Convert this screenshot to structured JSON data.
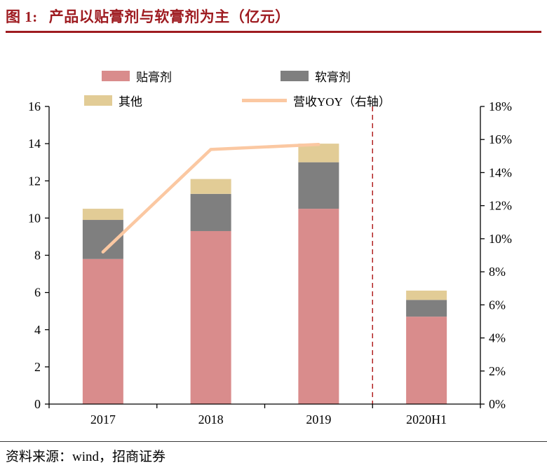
{
  "header": {
    "figure_label": "图 1:",
    "title": "产品以贴膏剂与软膏剂为主（亿元）"
  },
  "footer": {
    "source": "资料来源：wind，招商证券"
  },
  "colors": {
    "title_red": "#9E1B20",
    "divider_red": "#B22222",
    "axis_black": "#000000"
  },
  "chart_data": {
    "type": "bar",
    "stacked": true,
    "title": "产品以贴膏剂与软膏剂为主（亿元）",
    "unit": "亿元",
    "categories": [
      "2017",
      "2018",
      "2019",
      "2020H1"
    ],
    "series": [
      {
        "name": "贴膏剂",
        "type": "bar",
        "axis": "left",
        "color": "#D98C8C",
        "values": [
          7.8,
          9.3,
          10.5,
          4.7
        ]
      },
      {
        "name": "软膏剂",
        "type": "bar",
        "axis": "left",
        "color": "#7F7F7F",
        "values": [
          2.1,
          2.0,
          2.5,
          0.9
        ]
      },
      {
        "name": "其他",
        "type": "bar",
        "axis": "left",
        "color": "#E2CC96",
        "values": [
          0.6,
          0.8,
          1.0,
          0.5
        ]
      },
      {
        "name": "营收YOY（右轴）",
        "type": "line",
        "axis": "right",
        "color": "#FBC8A2",
        "values": [
          9.2,
          15.4,
          15.7,
          null
        ]
      }
    ],
    "left_axis": {
      "min": 0,
      "max": 16,
      "step": 2
    },
    "right_axis": {
      "min": 0,
      "max": 18,
      "step": 2,
      "suffix": "%"
    },
    "divider_after_category": 2,
    "divider_color": "#B22222",
    "legend_position": "top",
    "gridlines": false
  }
}
